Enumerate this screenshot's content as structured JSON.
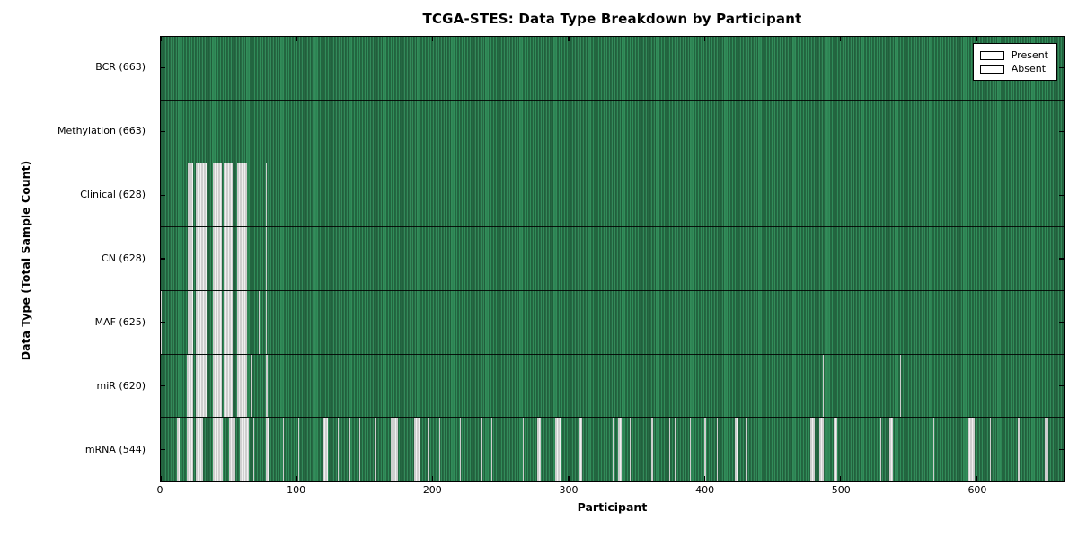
{
  "title": "TCGA-STES: Data Type Breakdown by Participant",
  "legend": {
    "present_label": "Present",
    "absent_label": "Absent"
  },
  "colors": {
    "present": "#2E8B57",
    "absent": "#F0F0F0",
    "axis": "#000000",
    "background": "#FFFFFF"
  },
  "chart_data": {
    "type": "heatmap",
    "title": "TCGA-STES: Data Type Breakdown by Participant",
    "xlabel": "Participant",
    "ylabel": "Data Type (Total Sample Count)",
    "legend_entries": [
      "Present",
      "Absent"
    ],
    "legend_position": "upper right",
    "grid": false,
    "total_participants": 663,
    "xlim": [
      0,
      664
    ],
    "x_ticks": [
      0,
      100,
      200,
      300,
      400,
      500,
      600
    ],
    "rows": [
      {
        "name": "BCR",
        "label": "BCR (663)",
        "present_count": 663,
        "absent_ranges": []
      },
      {
        "name": "Methylation",
        "label": "Methylation (663)",
        "present_count": 663,
        "absent_ranges": []
      },
      {
        "name": "Clinical",
        "label": "Clinical (628)",
        "present_count": 628,
        "absent_ranges": [
          [
            20,
            24
          ],
          [
            26,
            34
          ],
          [
            38,
            45
          ],
          [
            46,
            53
          ],
          [
            56,
            64
          ],
          [
            77,
            78
          ]
        ]
      },
      {
        "name": "CN",
        "label": "CN (628)",
        "present_count": 628,
        "absent_ranges": [
          [
            20,
            24
          ],
          [
            26,
            34
          ],
          [
            38,
            45
          ],
          [
            46,
            53
          ],
          [
            56,
            64
          ],
          [
            77,
            78
          ]
        ]
      },
      {
        "name": "MAF",
        "label": "MAF (625)",
        "present_count": 625,
        "absent_ranges": [
          [
            0,
            1
          ],
          [
            20,
            24
          ],
          [
            26,
            34
          ],
          [
            38,
            45
          ],
          [
            46,
            53
          ],
          [
            56,
            64
          ],
          [
            72,
            73
          ],
          [
            77,
            78
          ],
          [
            242,
            243
          ]
        ]
      },
      {
        "name": "miR",
        "label": "miR (620)",
        "present_count": 620,
        "absent_ranges": [
          [
            19,
            24
          ],
          [
            26,
            34
          ],
          [
            38,
            45
          ],
          [
            46,
            53
          ],
          [
            56,
            64
          ],
          [
            66,
            67
          ],
          [
            77,
            79
          ],
          [
            424,
            425
          ],
          [
            487,
            488
          ],
          [
            544,
            545
          ],
          [
            593,
            594
          ],
          [
            599,
            600
          ]
        ]
      },
      {
        "name": "mRNA",
        "label": "mRNA (544)",
        "present_count": 544,
        "absent_ranges": [
          [
            12,
            14
          ],
          [
            19,
            24
          ],
          [
            26,
            31
          ],
          [
            38,
            46
          ],
          [
            50,
            55
          ],
          [
            58,
            65
          ],
          [
            68,
            69
          ],
          [
            77,
            80
          ],
          [
            90,
            91
          ],
          [
            101,
            102
          ],
          [
            119,
            123
          ],
          [
            130,
            131
          ],
          [
            139,
            140
          ],
          [
            146,
            147
          ],
          [
            157,
            158
          ],
          [
            169,
            175
          ],
          [
            186,
            191
          ],
          [
            196,
            197
          ],
          [
            205,
            206
          ],
          [
            220,
            221
          ],
          [
            235,
            236
          ],
          [
            243,
            244
          ],
          [
            255,
            256
          ],
          [
            266,
            267
          ],
          [
            277,
            280
          ],
          [
            290,
            295
          ],
          [
            307,
            310
          ],
          [
            332,
            333
          ],
          [
            336,
            339
          ],
          [
            345,
            346
          ],
          [
            361,
            362
          ],
          [
            374,
            375
          ],
          [
            378,
            379
          ],
          [
            389,
            390
          ],
          [
            400,
            401
          ],
          [
            409,
            410
          ],
          [
            422,
            425
          ],
          [
            430,
            431
          ],
          [
            478,
            481
          ],
          [
            484,
            488
          ],
          [
            495,
            498
          ],
          [
            521,
            522
          ],
          [
            529,
            530
          ],
          [
            536,
            539
          ],
          [
            568,
            569
          ],
          [
            593,
            599
          ],
          [
            610,
            611
          ],
          [
            630,
            632
          ],
          [
            638,
            639
          ],
          [
            650,
            653
          ]
        ]
      }
    ]
  }
}
